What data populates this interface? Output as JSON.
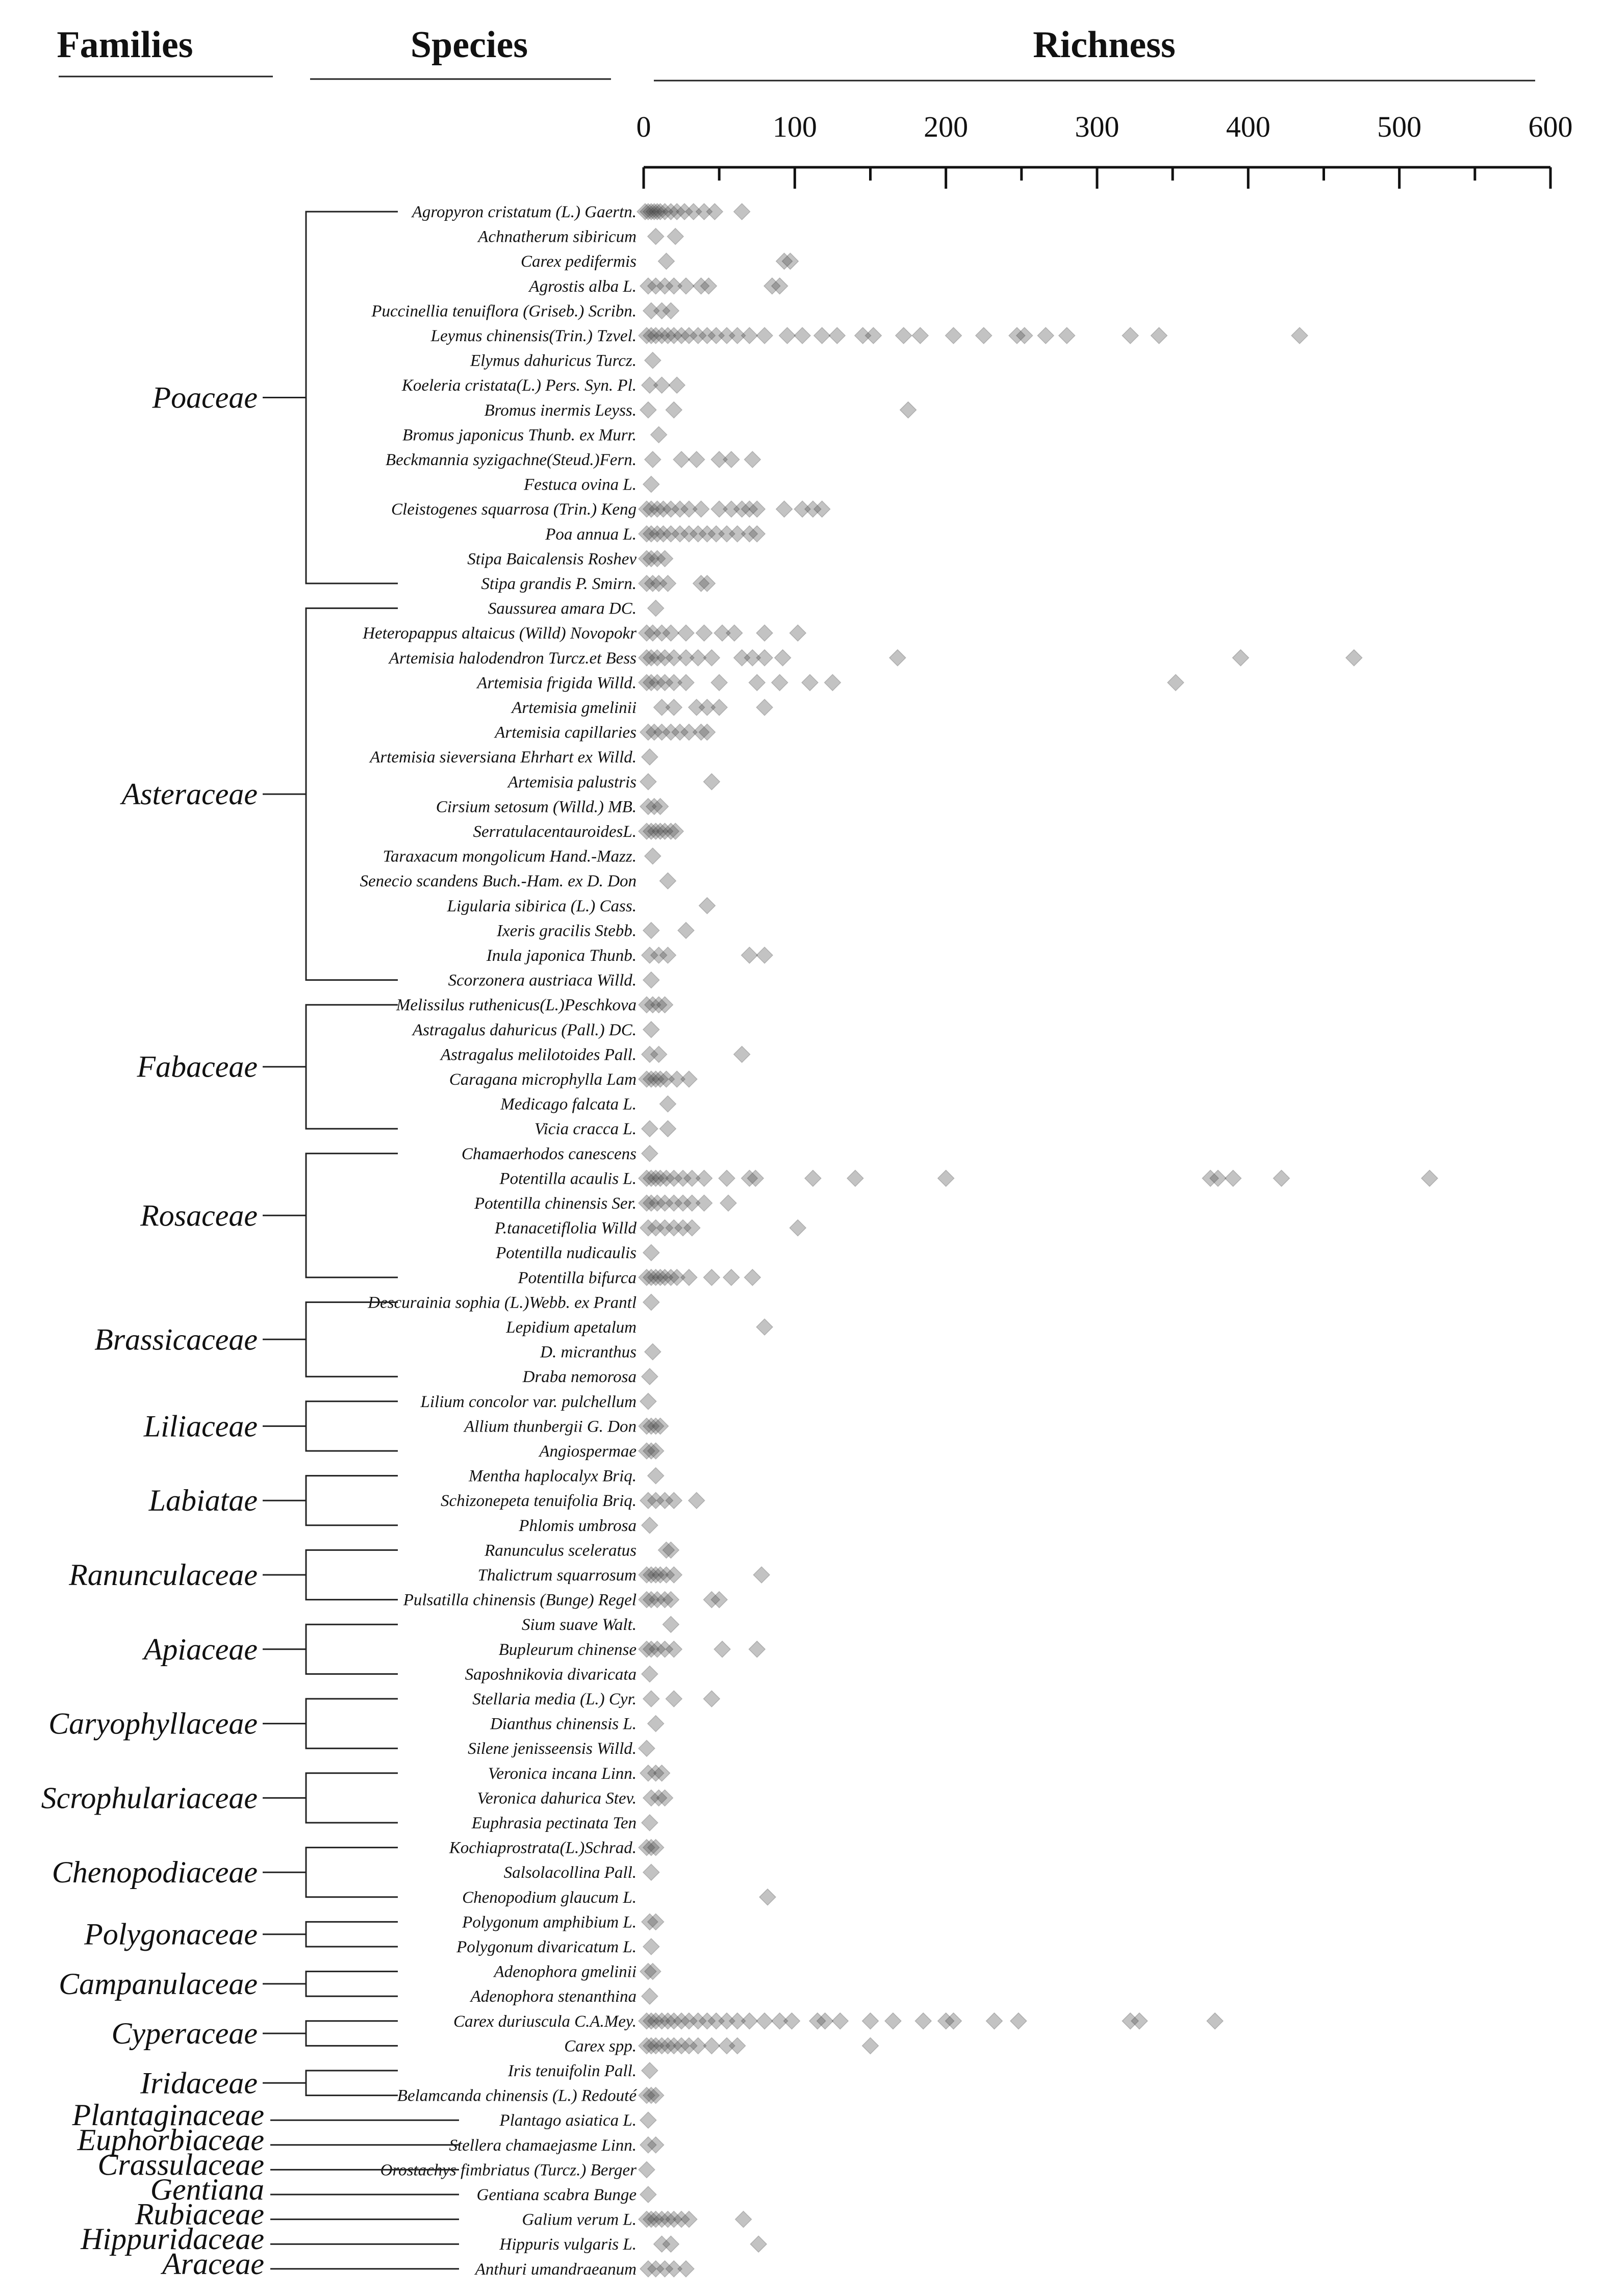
{
  "headers": {
    "families": "Families",
    "species": "Species",
    "richness": "Richness"
  },
  "chart_data": {
    "type": "scatter",
    "xlabel": "Richness",
    "xlim": [
      0,
      600
    ],
    "xticks": [
      "0",
      "100",
      "200",
      "300",
      "400",
      "500",
      "600"
    ],
    "families": [
      {
        "name": "Poaceae",
        "first": 0,
        "last": 15
      },
      {
        "name": "Asteraceae",
        "first": 16,
        "last": 31
      },
      {
        "name": "Fabaceae",
        "first": 32,
        "last": 37
      },
      {
        "name": "Rosaceae",
        "first": 38,
        "last": 43
      },
      {
        "name": "Brassicaceae",
        "first": 44,
        "last": 47
      },
      {
        "name": "Liliaceae",
        "first": 48,
        "last": 50
      },
      {
        "name": "Labiatae",
        "first": 51,
        "last": 53
      },
      {
        "name": "Ranunculaceae",
        "first": 54,
        "last": 56
      },
      {
        "name": "Apiaceae",
        "first": 57,
        "last": 59
      },
      {
        "name": "Caryophyllaceae",
        "first": 60,
        "last": 62
      },
      {
        "name": "Scrophulariaceae",
        "first": 63,
        "last": 65
      },
      {
        "name": "Chenopodiaceae",
        "first": 66,
        "last": 68
      },
      {
        "name": "Polygonaceae",
        "first": 69,
        "last": 70
      },
      {
        "name": "Campanulaceae",
        "first": 71,
        "last": 72
      },
      {
        "name": "Cyperaceae",
        "first": 73,
        "last": 74
      },
      {
        "name": "Iridaceae",
        "first": 75,
        "last": 76
      },
      {
        "name": "Plantaginaceae",
        "first": 77,
        "last": 77
      },
      {
        "name": "Euphorbiaceae",
        "first": 78,
        "last": 78
      },
      {
        "name": "Crassulaceae",
        "first": 79,
        "last": 79
      },
      {
        "name": "Gentiana",
        "first": 80,
        "last": 80
      },
      {
        "name": "Rubiaceae",
        "first": 81,
        "last": 81
      },
      {
        "name": "Hippuridaceae",
        "first": 82,
        "last": 82
      },
      {
        "name": "Araceae",
        "first": 83,
        "last": 83
      }
    ],
    "species": [
      {
        "name": "Agropyron cristatum (L.) Gaertn.",
        "values": [
          1,
          3,
          5,
          7,
          9,
          11,
          14,
          18,
          22,
          27,
          33,
          40,
          47,
          65
        ]
      },
      {
        "name": "Achnatherum sibiricum",
        "values": [
          8,
          21
        ]
      },
      {
        "name": "Carex pedifermis",
        "values": [
          15,
          93,
          97
        ]
      },
      {
        "name": "Agrostis alba L.",
        "values": [
          3,
          8,
          14,
          20,
          28,
          38,
          43,
          85,
          90
        ]
      },
      {
        "name": "Puccinellia tenuiflora (Griseb.) Scribn.",
        "values": [
          5,
          12,
          18
        ]
      },
      {
        "name": "Leymus chinensis(Trin.) Tzvel.",
        "values": [
          2,
          5,
          8,
          12,
          16,
          20,
          25,
          30,
          36,
          42,
          48,
          55,
          62,
          70,
          80,
          95,
          105,
          118,
          128,
          145,
          152,
          172,
          183,
          205,
          225,
          247,
          252,
          266,
          280,
          322,
          341,
          434
        ]
      },
      {
        "name": "Elymus dahuricus Turcz.",
        "values": [
          6
        ]
      },
      {
        "name": "Koeleria cristata(L.) Pers. Syn. Pl.",
        "values": [
          4,
          12,
          22
        ]
      },
      {
        "name": "Bromus inermis Leyss.",
        "values": [
          3,
          20,
          175
        ]
      },
      {
        "name": "Bromus japonicus Thunb. ex Murr.",
        "values": [
          10
        ]
      },
      {
        "name": "Beckmannia syzigachne(Steud.)Fern.",
        "values": [
          6,
          25,
          35,
          50,
          58,
          72
        ]
      },
      {
        "name": "Festuca ovina L.",
        "values": [
          5
        ]
      },
      {
        "name": "Cleistogenes squarrosa (Trin.) Keng",
        "values": [
          2,
          5,
          9,
          13,
          18,
          24,
          30,
          38,
          50,
          58,
          65,
          70,
          75,
          93,
          105,
          112,
          118
        ]
      },
      {
        "name": "Poa annua L.",
        "values": [
          2,
          5,
          9,
          13,
          18,
          24,
          30,
          36,
          42,
          48,
          55,
          62,
          70,
          75
        ]
      },
      {
        "name": "Stipa Baicalensis Roshev",
        "values": [
          2,
          5,
          9,
          14
        ]
      },
      {
        "name": "Stipa grandis P. Smirn.",
        "values": [
          2,
          6,
          10,
          16,
          38,
          42
        ]
      },
      {
        "name": "Saussurea amara DC.",
        "values": [
          8
        ]
      },
      {
        "name": "Heteropappus altaicus (Willd) Novopokr",
        "values": [
          2,
          6,
          12,
          18,
          28,
          40,
          52,
          60,
          80,
          102
        ]
      },
      {
        "name": "Artemisia halodendron Turcz.et Bess",
        "values": [
          2,
          5,
          9,
          14,
          20,
          28,
          36,
          45,
          65,
          72,
          80,
          92,
          168,
          395,
          470
        ]
      },
      {
        "name": "Artemisia frigida Willd.",
        "values": [
          2,
          5,
          9,
          14,
          20,
          28,
          50,
          75,
          90,
          110,
          125,
          352
        ]
      },
      {
        "name": "Artemisia gmelinii",
        "values": [
          12,
          20,
          35,
          42,
          50,
          80
        ]
      },
      {
        "name": "Artemisia capillaries",
        "values": [
          3,
          7,
          12,
          18,
          24,
          30,
          38,
          42
        ]
      },
      {
        "name": "Artemisia sieversiana Ehrhart ex Willd.",
        "values": [
          4
        ]
      },
      {
        "name": "Artemisia palustris",
        "values": [
          3,
          45
        ]
      },
      {
        "name": "Cirsium setosum (Willd.) MB.",
        "values": [
          3,
          7,
          11
        ]
      },
      {
        "name": "SerratulacentauroidesL.",
        "values": [
          2,
          5,
          8,
          11,
          14,
          18,
          21
        ]
      },
      {
        "name": "Taraxacum mongolicum Hand.-Mazz.",
        "values": [
          6
        ]
      },
      {
        "name": "Senecio scandens Buch.-Ham. ex D. Don",
        "values": [
          16
        ]
      },
      {
        "name": "Ligularia sibirica (L.) Cass.",
        "values": [
          42
        ]
      },
      {
        "name": "Ixeris gracilis Stebb.",
        "values": [
          5,
          28
        ]
      },
      {
        "name": "Inula japonica Thunb.",
        "values": [
          4,
          10,
          16,
          70,
          80
        ]
      },
      {
        "name": "Scorzonera austriaca Willd.",
        "values": [
          5
        ]
      },
      {
        "name": "Melissilus ruthenicus(L.)Peschkova",
        "values": [
          2,
          6,
          10,
          14
        ]
      },
      {
        "name": "Astragalus dahuricus (Pall.) DC.",
        "values": [
          5
        ]
      },
      {
        "name": "Astragalus melilotoides Pall.",
        "values": [
          4,
          10,
          65
        ]
      },
      {
        "name": "Caragana microphylla Lam",
        "values": [
          2,
          5,
          8,
          11,
          15,
          22,
          30
        ]
      },
      {
        "name": "Medicago falcata L.",
        "values": [
          16
        ]
      },
      {
        "name": "Vicia cracca L.",
        "values": [
          4,
          16
        ]
      },
      {
        "name": "Chamaerhodos canescens",
        "values": [
          4
        ]
      },
      {
        "name": "Potentilla acaulis L.",
        "values": [
          2,
          5,
          8,
          11,
          15,
          20,
          26,
          32,
          40,
          55,
          70,
          74,
          112,
          140,
          200,
          375,
          380,
          390,
          422,
          520
        ]
      },
      {
        "name": "Potentilla chinensis Ser.",
        "values": [
          2,
          5,
          9,
          14,
          20,
          26,
          32,
          40,
          56
        ]
      },
      {
        "name": "P.tanacetiflolia Willd",
        "values": [
          3,
          8,
          14,
          20,
          26,
          32,
          102
        ]
      },
      {
        "name": "Potentilla nudicaulis",
        "values": [
          5
        ]
      },
      {
        "name": "Potentilla bifurca",
        "values": [
          2,
          5,
          8,
          11,
          14,
          18,
          22,
          30,
          45,
          58,
          72
        ]
      },
      {
        "name": "Descurainia sophia (L.)Webb. ex Prantl",
        "values": [
          5
        ]
      },
      {
        "name": "Lepidium apetalum",
        "values": [
          80
        ]
      },
      {
        "name": "D. micranthus",
        "values": [
          6
        ]
      },
      {
        "name": "Draba nemorosa",
        "values": [
          4
        ]
      },
      {
        "name": "Lilium concolor var. pulchellum",
        "values": [
          3
        ]
      },
      {
        "name": "Allium thunbergii G. Don",
        "values": [
          2,
          5,
          8,
          11
        ]
      },
      {
        "name": "Angiospermae",
        "values": [
          2,
          5,
          8
        ]
      },
      {
        "name": "Mentha haplocalyx Briq.",
        "values": [
          8
        ]
      },
      {
        "name": "Schizonepeta tenuifolia Briq.",
        "values": [
          3,
          8,
          14,
          20,
          35
        ]
      },
      {
        "name": "Phlomis umbrosa",
        "values": [
          4
        ]
      },
      {
        "name": "Ranunculus sceleratus",
        "values": [
          15,
          18
        ]
      },
      {
        "name": "Thalictrum squarrosum",
        "values": [
          2,
          5,
          8,
          11,
          15,
          20,
          78
        ]
      },
      {
        "name": "Pulsatilla chinensis (Bunge) Regel",
        "values": [
          2,
          5,
          9,
          14,
          18,
          45,
          50
        ]
      },
      {
        "name": "Sium suave Walt.",
        "values": [
          18
        ]
      },
      {
        "name": "Bupleurum chinense",
        "values": [
          2,
          5,
          9,
          14,
          20,
          52,
          75
        ]
      },
      {
        "name": "Saposhnikovia divaricata",
        "values": [
          4
        ]
      },
      {
        "name": "Stellaria media (L.) Cyr.",
        "values": [
          5,
          20,
          45
        ]
      },
      {
        "name": "Dianthus chinensis L.",
        "values": [
          8
        ]
      },
      {
        "name": "Silene jenisseensis Willd.",
        "values": [
          2
        ]
      },
      {
        "name": "Veronica incana Linn.",
        "values": [
          3,
          8,
          12
        ]
      },
      {
        "name": "Veronica dahurica Stev.",
        "values": [
          5,
          10,
          14
        ]
      },
      {
        "name": "Euphrasia pectinata Ten",
        "values": [
          4
        ]
      },
      {
        "name": "Kochiaprostrata(L.)Schrad.",
        "values": [
          2,
          5,
          8
        ]
      },
      {
        "name": "Salsolacollina Pall.",
        "values": [
          5
        ]
      },
      {
        "name": "Chenopodium glaucum L.",
        "values": [
          82
        ]
      },
      {
        "name": "Polygonum amphibium L.",
        "values": [
          4,
          8
        ]
      },
      {
        "name": "Polygonum divaricatum L.",
        "values": [
          5
        ]
      },
      {
        "name": "Adenophora gmelinii",
        "values": [
          3,
          6
        ]
      },
      {
        "name": "Adenophora stenanthina",
        "values": [
          4
        ]
      },
      {
        "name": "Carex duriuscula C.A.Mey.",
        "values": [
          2,
          5,
          8,
          12,
          16,
          20,
          25,
          30,
          36,
          42,
          48,
          55,
          62,
          70,
          80,
          90,
          98,
          115,
          120,
          130,
          150,
          165,
          185,
          200,
          205,
          232,
          248,
          322,
          328,
          378
        ]
      },
      {
        "name": "Carex spp.",
        "values": [
          2,
          5,
          8,
          12,
          16,
          20,
          25,
          30,
          36,
          45,
          55,
          62,
          150
        ]
      },
      {
        "name": "Iris tenuifolin Pall.",
        "values": [
          4
        ]
      },
      {
        "name": "Belamcanda chinensis (L.) Redouté",
        "values": [
          2,
          5,
          8
        ]
      },
      {
        "name": "Plantago asiatica L.",
        "values": [
          3
        ]
      },
      {
        "name": "Stellera chamaejasme Linn.",
        "values": [
          3,
          8
        ]
      },
      {
        "name": "Orostachys fimbriatus (Turcz.) Berger",
        "values": [
          2
        ]
      },
      {
        "name": "Gentiana scabra Bunge",
        "values": [
          3
        ]
      },
      {
        "name": "Galium verum L.",
        "values": [
          2,
          5,
          8,
          12,
          16,
          20,
          25,
          30,
          66
        ]
      },
      {
        "name": "Hippuris vulgaris L.",
        "values": [
          12,
          18,
          76
        ]
      },
      {
        "name": "Anthuri umandraeanum",
        "values": [
          3,
          8,
          14,
          20,
          28
        ]
      }
    ]
  }
}
